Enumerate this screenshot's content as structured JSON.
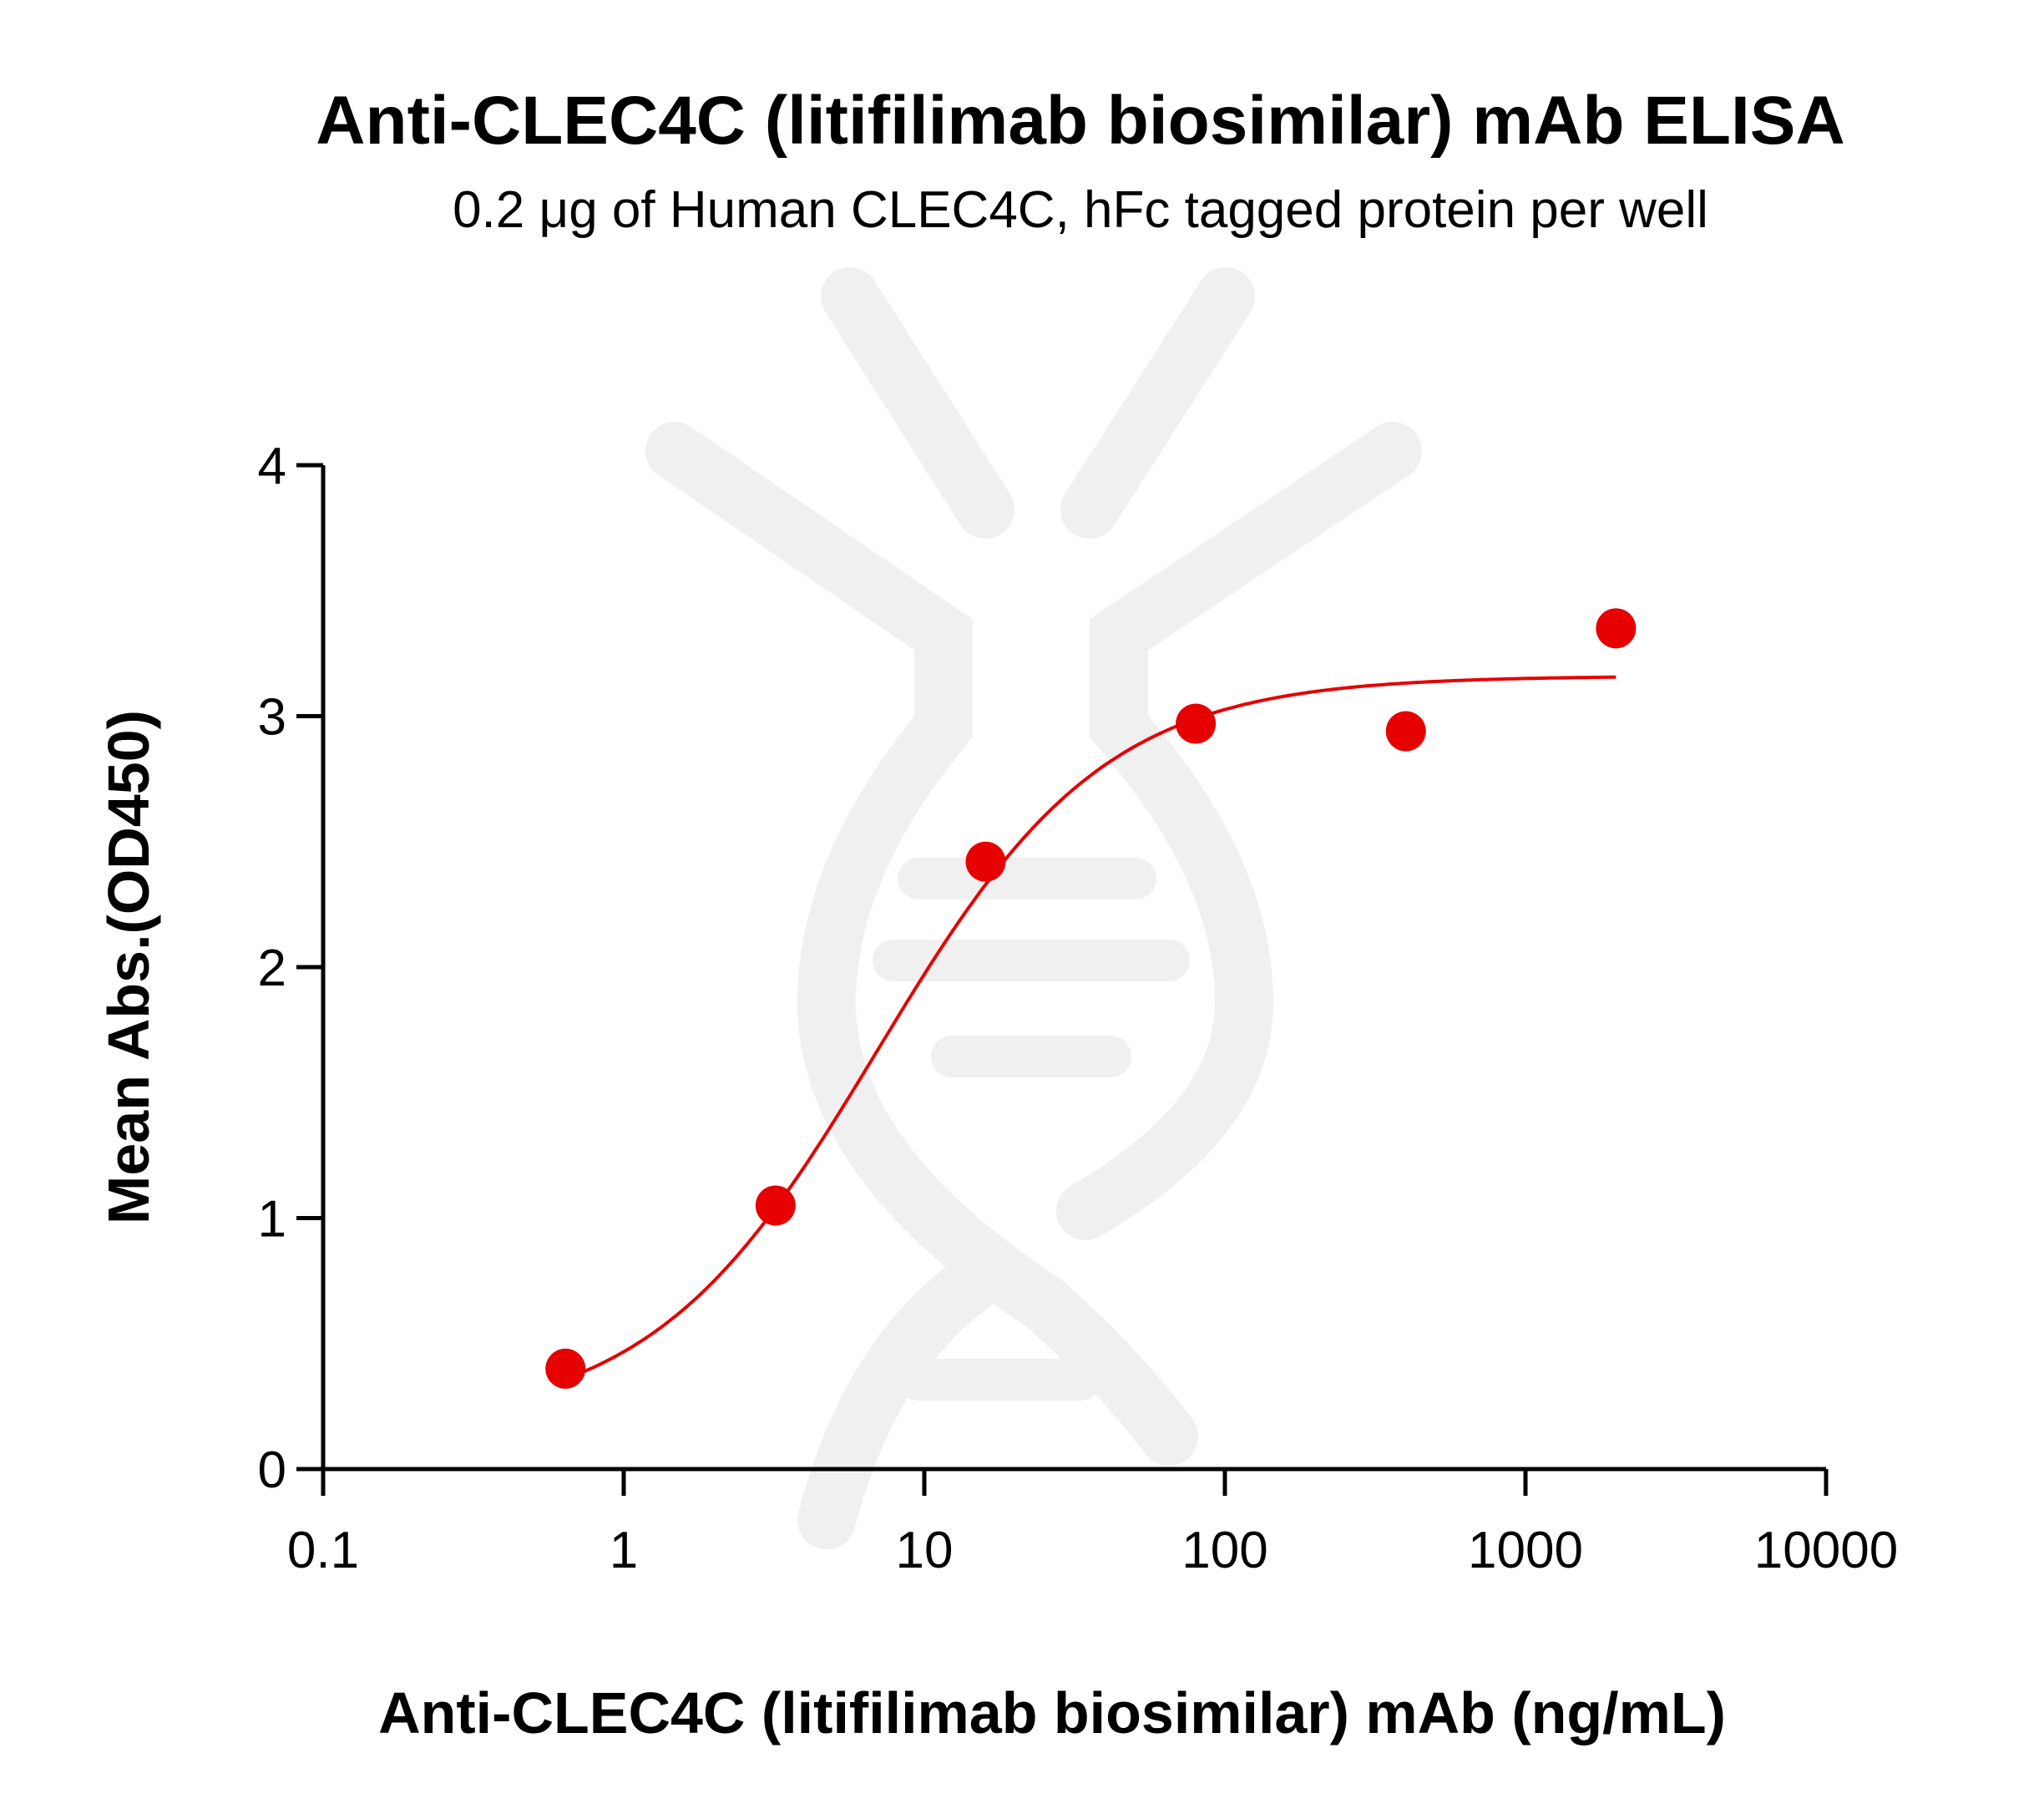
{
  "chart_data": {
    "type": "scatter",
    "title": "Anti-CLEC4C (litifilimab biosimilar) mAb ELISA",
    "subtitle": "0.2 μg of Human CLEC4C, hFc tagged protein per well",
    "xlabel": "Anti-CLEC4C (litifilimab biosimilar) mAb (ng/mL)",
    "ylabel": "Mean Abs.(OD450)",
    "x_scale": "log",
    "xlim": [
      0.1,
      10000
    ],
    "ylim": [
      0,
      4
    ],
    "x_ticks": [
      0.1,
      1,
      10,
      100,
      1000,
      10000
    ],
    "x_tick_labels": [
      "0.1",
      "1",
      "10",
      "100",
      "1000",
      "10000"
    ],
    "y_ticks": [
      0,
      1,
      2,
      3,
      4
    ],
    "y_tick_labels": [
      "0",
      "1",
      "2",
      "3",
      "4"
    ],
    "grid": false,
    "colors": {
      "series": "#e60000",
      "axes": "#000000"
    },
    "series": [
      {
        "x": [
          0.64,
          3.2,
          16,
          80,
          400,
          2000
        ],
        "y": [
          0.4,
          1.05,
          2.42,
          2.97,
          2.94,
          3.35
        ],
        "fit": "four-parameter logistic curve"
      }
    ]
  }
}
